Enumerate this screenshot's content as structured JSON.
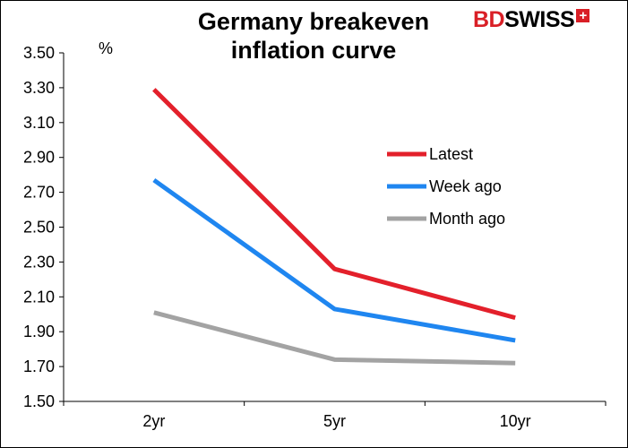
{
  "logo": {
    "text_bd": "BD",
    "text_swiss": "SWISS",
    "mark": "+"
  },
  "chart_data": {
    "type": "line",
    "title": "Germany breakeven\ninflation curve",
    "ylabel": "%",
    "xlabel": "",
    "categories": [
      "2yr",
      "5yr",
      "10yr"
    ],
    "ylim": [
      1.5,
      3.5
    ],
    "yticks": [
      "1.50",
      "1.70",
      "1.90",
      "2.10",
      "2.30",
      "2.50",
      "2.70",
      "2.90",
      "3.10",
      "3.30",
      "3.50"
    ],
    "grid": false,
    "legend_position": "right",
    "series": [
      {
        "name": "Latest",
        "color": "#e3202b",
        "values": [
          3.29,
          2.26,
          1.98
        ]
      },
      {
        "name": "Week ago",
        "color": "#1f86f0",
        "values": [
          2.77,
          2.03,
          1.85
        ]
      },
      {
        "name": "Month ago",
        "color": "#a3a3a3",
        "values": [
          2.01,
          1.74,
          1.72
        ]
      }
    ]
  }
}
